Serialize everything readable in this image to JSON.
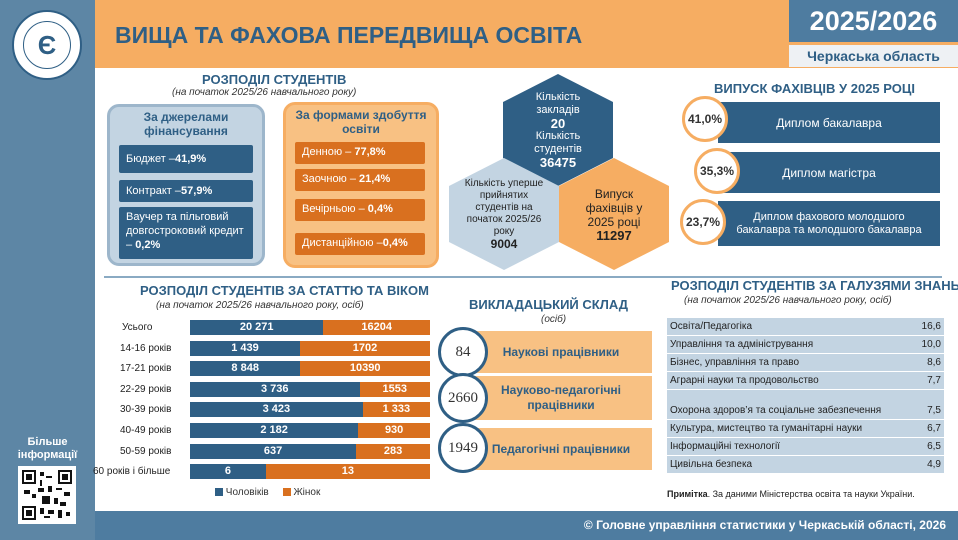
{
  "header": {
    "title": "ВИЩА ТА ФАХОВА ПЕРЕДВИЩА ОСВІТА",
    "year": "2025/2026",
    "region": "Черкаська область"
  },
  "sidebar": {
    "logo_icon": "derzhstat-emblem-icon",
    "more_info": "Більше інформації",
    "qr_icon": "qr-code-icon"
  },
  "distribution": {
    "title": "РОЗПОДІЛ СТУДЕНТІВ",
    "subtitle": "(на початок 2025/26 навчального року)",
    "financing": {
      "title": "За джерелами фінансування",
      "items": [
        {
          "label": "Бюджет – ",
          "value": "41,9%"
        },
        {
          "label": "Контракт – ",
          "value": "57,9%"
        },
        {
          "label": "Ваучер та пільговий довгостроковий кредит – ",
          "value": "0,2%"
        }
      ]
    },
    "forms": {
      "title": "За формами здобуття освіти",
      "items": [
        {
          "label": "Денною – ",
          "value": "77,8%"
        },
        {
          "label": "Заочною – ",
          "value": "21,4%"
        },
        {
          "label": "Вечірньою – ",
          "value": "0,4%"
        },
        {
          "label": "Дистанційною –",
          "value": "0,4%"
        }
      ]
    }
  },
  "hexagons": {
    "institutions_label": "Кількість закладів",
    "institutions_value": "20",
    "students_label": "Кількість студентів",
    "students_value": "36475",
    "admitted_label": "Кількість уперше прийнятих студентів на початок 2025/26 року",
    "admitted_value": "9004",
    "graduates_label": "Випуск фахівців у 2025 році",
    "graduates_value": "11297"
  },
  "graduates": {
    "title": "ВИПУСК ФАХІВЦІВ У 2025 РОЦІ",
    "items": [
      {
        "pct": "41,0%",
        "label": "Диплом бакалавра"
      },
      {
        "pct": "35,3%",
        "label": "Диплом магістра"
      },
      {
        "pct": "23,7%",
        "label": "Диплом фахового молодшого бакалавра та молодшого бакалавра"
      }
    ]
  },
  "age_sex": {
    "title": "РОЗПОДІЛ СТУДЕНТІВ  ЗА СТАТТЮ ТА ВІКОМ",
    "subtitle": "(на початок 2025/26 навчального року, осіб)",
    "legend_male": "Чоловіків",
    "legend_female": "Жінок",
    "male_color": "#2f5f85",
    "female_color": "#d9701f",
    "rows": [
      {
        "label": "Усього",
        "male": 20271,
        "female": 16204,
        "male_text": "20 271",
        "female_text": "16204"
      },
      {
        "label": "14-16  років",
        "male": 1439,
        "female": 1702,
        "male_text": "1 439",
        "female_text": "1702"
      },
      {
        "label": "17-21  років",
        "male": 8848,
        "female": 10390,
        "male_text": "8 848",
        "female_text": "10390"
      },
      {
        "label": "22-29  років",
        "male": 3736,
        "female": 1553,
        "male_text": "3 736",
        "female_text": "1553"
      },
      {
        "label": "30-39  років",
        "male": 3423,
        "female": 1333,
        "male_text": "3 423",
        "female_text": "1 333"
      },
      {
        "label": "40-49  років",
        "male": 2182,
        "female": 930,
        "male_text": "2 182",
        "female_text": "930"
      },
      {
        "label": "50-59  років",
        "male": 637,
        "female": 283,
        "male_text": "637",
        "female_text": "283"
      },
      {
        "label": "60 років і більше",
        "male": 6,
        "female": 13,
        "male_text": "6",
        "female_text": "13"
      }
    ]
  },
  "staff": {
    "title": "ВИКЛАДАЦЬКИЙ СКЛАД",
    "subtitle": "(осіб)",
    "items": [
      {
        "value": "84",
        "label": "Наукові працівники"
      },
      {
        "value": "2660",
        "label": "Науково-педагогічні працівники"
      },
      {
        "value": "1949",
        "label": "Педагогічні працівники"
      }
    ]
  },
  "fields": {
    "title": "РОЗПОДІЛ СТУДЕНТІВ  ЗА ГАЛУЗЯМИ ЗНАНЬ",
    "subtitle": "(на початок 2025/26 навчального року, осіб)",
    "rows": [
      {
        "name": "Освіта/Педагогіка",
        "value": "16,6"
      },
      {
        "name": "Управління та адміністрування",
        "value": "10,0"
      },
      {
        "name": "Бізнес, управління та право",
        "value": "8,6"
      },
      {
        "name": "Аграрні науки та продовольство",
        "value": "7,7"
      },
      {
        "name": "Охорона здоров’я та соціальне забезпечення",
        "value": "7,5"
      },
      {
        "name": "Культура, мистецтво та гуманітарні науки",
        "value": "6,7"
      },
      {
        "name": "Інформаційні технології",
        "value": "6,5"
      },
      {
        "name": "Цивільна безпека",
        "value": "4,9"
      }
    ],
    "note_bold": "Примітка",
    "note_text": ". За даними Міністерства освіта та науки України."
  },
  "footer": {
    "text": "© Головне управління статистики у Черкаській області, 2026"
  }
}
